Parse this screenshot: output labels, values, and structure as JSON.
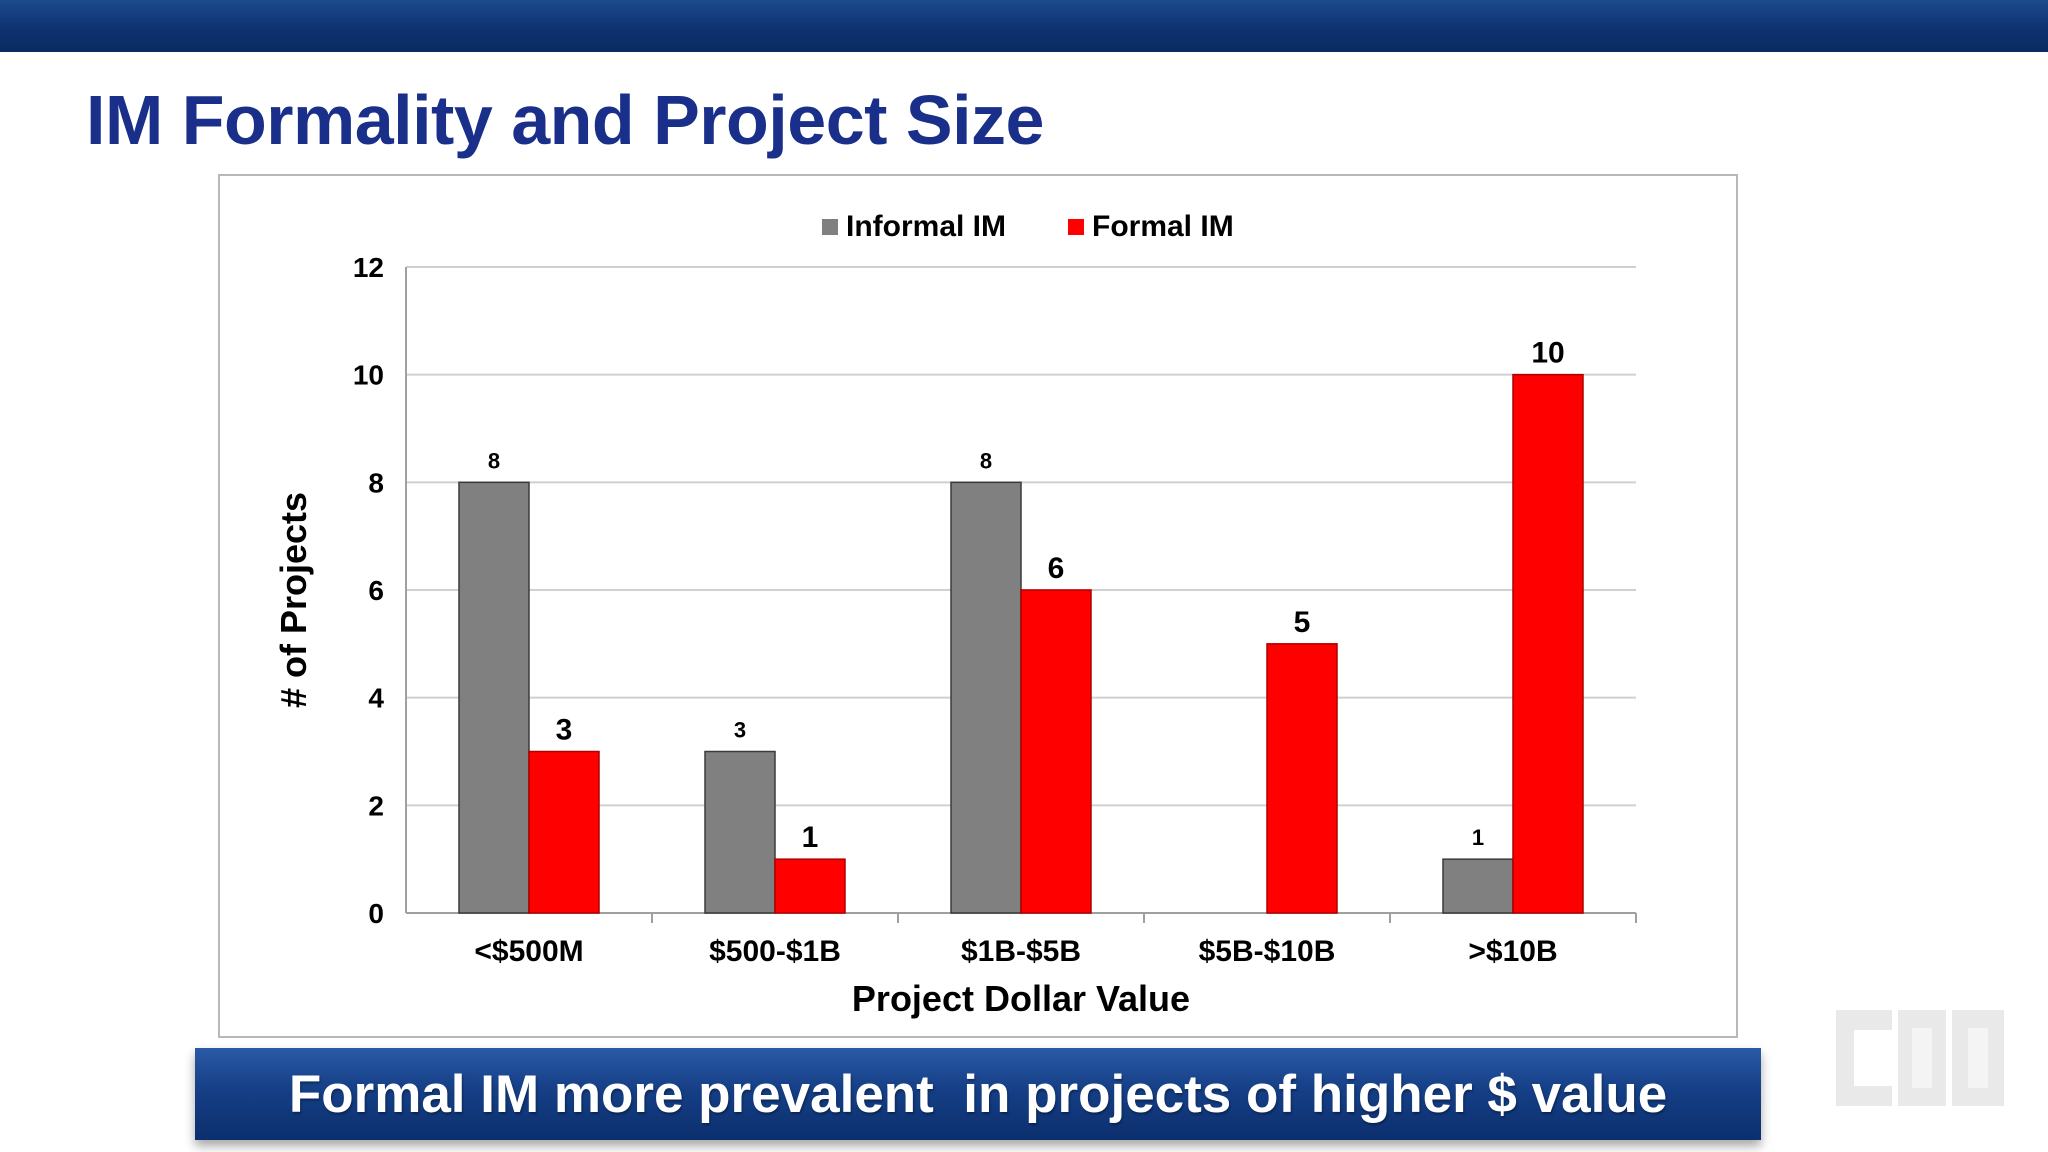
{
  "slide": {
    "title": "IM Formality and Project Size",
    "banner": "Formal IM more prevalent  in projects of higher $ value",
    "logo_text": "CII",
    "colors": {
      "header_bar": "#0e3270",
      "title": "#1a2f8a",
      "banner": "#153f86"
    }
  },
  "chart_data": {
    "type": "bar",
    "categories": [
      "<$500M",
      "$500-$1B",
      "$1B-$5B",
      "$5B-$10B",
      ">$10B"
    ],
    "series": [
      {
        "name": "Informal IM",
        "color": "#808080",
        "values": [
          8,
          3,
          8,
          null,
          1
        ],
        "labels": [
          "8",
          "3",
          "8",
          "",
          "1"
        ]
      },
      {
        "name": "Formal IM",
        "color": "#ff0000",
        "values": [
          3,
          1,
          6,
          5,
          10
        ],
        "labels": [
          "3",
          "1",
          "6",
          "5",
          "10"
        ]
      }
    ],
    "xlabel": "Project Dollar Value",
    "ylabel": "# of Projects",
    "ylim": [
      0,
      12
    ],
    "yticks": [
      "0",
      "2",
      "4",
      "6",
      "8",
      "10",
      "12"
    ],
    "grid": true,
    "legend": "top"
  }
}
